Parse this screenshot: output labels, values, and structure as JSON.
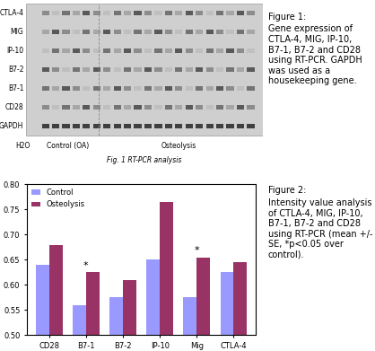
{
  "gel": {
    "rows": [
      "CTLA-4",
      "MIG",
      "IP-10",
      "B7-2",
      "B7-1",
      "CD28",
      "GAPDH"
    ],
    "lanes": [
      "H2O",
      "Control (OA)",
      "Osteolysis"
    ],
    "caption": "Fig. 1 RT-PCR analysis"
  },
  "captions": [
    {
      "title": "Figure 1:",
      "text": "Gene expression of CTLA-4, MIG, IP-10, B7-1, B7-2 and CD28 using RT-PCR. GAPDH was used as a housekeeping gene."
    },
    {
      "title": "Figure 2:",
      "text": "Intensity value analysis of CTLA-4, MIG, IP-10, B7-1, B7-2 and CD28 using RT-PCR (mean +/- SE, *p<0.05 over control)."
    }
  ],
  "chart_data": {
    "type": "bar",
    "categories": [
      "CD28",
      "B7-1",
      "B7-2",
      "IP-10",
      "Mig",
      "CTLA-4"
    ],
    "series": [
      {
        "name": "Control",
        "color": "#9999ff",
        "values": [
          0.64,
          0.56,
          0.575,
          0.65,
          0.575,
          0.625
        ]
      },
      {
        "name": "Osteolysis",
        "color": "#993366",
        "values": [
          0.68,
          0.625,
          0.61,
          0.765,
          0.655,
          0.645
        ]
      }
    ],
    "ylim": [
      0.5,
      0.8
    ],
    "yticks": [
      {
        "value": 0.5,
        "label": "0.50"
      },
      {
        "value": 0.55,
        "label": "0.55"
      },
      {
        "value": 0.6,
        "label": "0.60"
      },
      {
        "value": 0.65,
        "label": "0.65"
      },
      {
        "value": 0.7,
        "label": "0.70"
      },
      {
        "value": 0.75,
        "label": "0.75"
      },
      {
        "value": 0.8,
        "label": "0.80"
      }
    ],
    "annotations": [
      {
        "category": "B7-1",
        "text": "*"
      },
      {
        "category": "Mig",
        "text": "*"
      }
    ],
    "legend": "upper left",
    "grid": false
  }
}
